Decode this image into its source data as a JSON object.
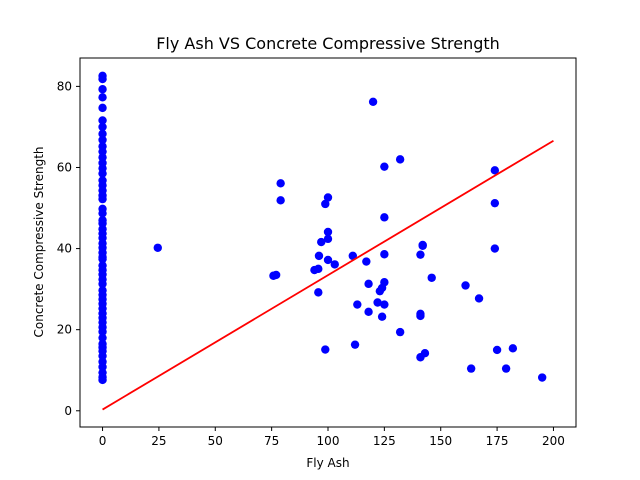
{
  "chart_data": {
    "type": "scatter",
    "title": "Fly Ash VS Concrete Compressive Strength",
    "xlabel": "Fly Ash",
    "ylabel": "Concrete Compressive Strength",
    "xlim": [
      -10,
      210
    ],
    "ylim": [
      -4,
      87
    ],
    "xticks": [
      0,
      25,
      50,
      75,
      100,
      125,
      150,
      175,
      200
    ],
    "yticks": [
      0,
      20,
      40,
      60,
      80
    ],
    "grid": false,
    "legend": false,
    "colors": {
      "points": "#0000ff",
      "fit_line": "#ff0000",
      "axes": "#000000",
      "background": "#ffffff"
    },
    "series": [
      {
        "type": "scatter",
        "points": [
          [
            0,
            82.6
          ],
          [
            0,
            81.8
          ],
          [
            0,
            79.3
          ],
          [
            0,
            77.3
          ],
          [
            0,
            74.7
          ],
          [
            0,
            71.6
          ],
          [
            0,
            70.0
          ],
          [
            0,
            68.3
          ],
          [
            0,
            66.8
          ],
          [
            0,
            65.2
          ],
          [
            0,
            63.9
          ],
          [
            0,
            62.5
          ],
          [
            0,
            61.1
          ],
          [
            0,
            59.8
          ],
          [
            0,
            58.5
          ],
          [
            0,
            56.8
          ],
          [
            0,
            55.6
          ],
          [
            0,
            54.3
          ],
          [
            0,
            53.1
          ],
          [
            0,
            52.2
          ],
          [
            0,
            49.8
          ],
          [
            0,
            48.7
          ],
          [
            0,
            47.0
          ],
          [
            0,
            46.2
          ],
          [
            0,
            44.8
          ],
          [
            0,
            43.7
          ],
          [
            0,
            42.6
          ],
          [
            0,
            41.3
          ],
          [
            0,
            40.2
          ],
          [
            0,
            39.0
          ],
          [
            0,
            37.9
          ],
          [
            0,
            37.4
          ],
          [
            0,
            35.8
          ],
          [
            0,
            34.7
          ],
          [
            0,
            33.6
          ],
          [
            0,
            32.4
          ],
          [
            0,
            31.3
          ],
          [
            0,
            29.7
          ],
          [
            0,
            28.6
          ],
          [
            0,
            27.5
          ],
          [
            0,
            26.4
          ],
          [
            0,
            25.2
          ],
          [
            0,
            24.0
          ],
          [
            0,
            22.9
          ],
          [
            0,
            21.8
          ],
          [
            0,
            20.6
          ],
          [
            0,
            19.5
          ],
          [
            0,
            18.0
          ],
          [
            0,
            16.5
          ],
          [
            0,
            15.6
          ],
          [
            0,
            14.7
          ],
          [
            0,
            13.5
          ],
          [
            0,
            12.1
          ],
          [
            0,
            10.8
          ],
          [
            0,
            9.4
          ],
          [
            0,
            8.3
          ],
          [
            0,
            7.6
          ],
          [
            24.5,
            40.2
          ],
          [
            75.8,
            33.3
          ],
          [
            77.0,
            33.5
          ],
          [
            79.0,
            56.1
          ],
          [
            79.0,
            51.9
          ],
          [
            94.0,
            34.7
          ],
          [
            95.7,
            29.2
          ],
          [
            95.7,
            35.0
          ],
          [
            96.0,
            38.2
          ],
          [
            97.0,
            41.6
          ],
          [
            98.8,
            15.1
          ],
          [
            98.8,
            51.0
          ],
          [
            100.0,
            52.6
          ],
          [
            100.0,
            44.1
          ],
          [
            100.0,
            42.4
          ],
          [
            100.0,
            37.2
          ],
          [
            103.0,
            36.1
          ],
          [
            111.0,
            38.2
          ],
          [
            112.0,
            16.3
          ],
          [
            113.0,
            26.2
          ],
          [
            117.0,
            36.8
          ],
          [
            118.0,
            24.4
          ],
          [
            118.0,
            31.3
          ],
          [
            120.0,
            76.2
          ],
          [
            122.0,
            26.7
          ],
          [
            123.0,
            29.5
          ],
          [
            124.0,
            30.3
          ],
          [
            124.0,
            23.2
          ],
          [
            125.0,
            60.2
          ],
          [
            125.0,
            47.7
          ],
          [
            125.0,
            38.6
          ],
          [
            125.0,
            31.7
          ],
          [
            125.0,
            26.2
          ],
          [
            132.0,
            62.0
          ],
          [
            132.0,
            19.4
          ],
          [
            141.0,
            38.5
          ],
          [
            141.0,
            23.9
          ],
          [
            141.0,
            23.4
          ],
          [
            141.0,
            13.2
          ],
          [
            142.0,
            40.9
          ],
          [
            142.0,
            40.7
          ],
          [
            143.0,
            14.2
          ],
          [
            146.0,
            32.8
          ],
          [
            161.0,
            30.9
          ],
          [
            163.5,
            10.4
          ],
          [
            167.0,
            27.7
          ],
          [
            174.0,
            59.3
          ],
          [
            174.0,
            51.2
          ],
          [
            174.0,
            40.0
          ],
          [
            175.0,
            15.0
          ],
          [
            179.0,
            10.4
          ],
          [
            182.0,
            15.4
          ],
          [
            195.0,
            8.2
          ]
        ]
      },
      {
        "type": "line",
        "points": [
          [
            0,
            0.3
          ],
          [
            200,
            66.6
          ]
        ]
      }
    ]
  }
}
